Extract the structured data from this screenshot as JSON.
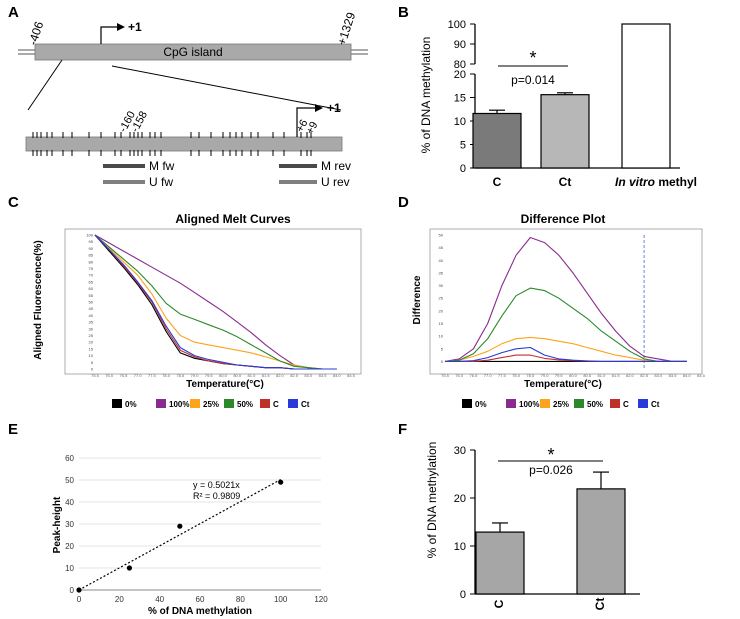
{
  "panels": {
    "a": "A",
    "b": "B",
    "c": "C",
    "d": "D",
    "e": "E",
    "f": "F"
  },
  "panelA": {
    "start": "-406",
    "end": "+1329",
    "tss": "+1",
    "island_label": "CpG island",
    "pos_160": "-160",
    "pos_158": "-158",
    "pos_p6": "+6",
    "pos_p9": "+9",
    "tss2": "+1",
    "primers": [
      "M fw",
      "U fw",
      "M rev",
      "U rev"
    ]
  },
  "chart_data": [
    {
      "panel": "B",
      "type": "bar",
      "ylabel": "% of DNA methylation",
      "categories": [
        "C",
        "Ct",
        "In vitro methyl"
      ],
      "values": [
        11.6,
        15.6,
        100
      ],
      "errors": [
        0.7,
        0.4,
        0
      ],
      "colors": [
        "#7a7a7a",
        "#b7b7b7",
        "#ffffff"
      ],
      "ylim_lower": [
        0,
        20
      ],
      "ylim_upper": [
        80,
        100
      ],
      "yticks": [
        "0",
        "5",
        "10",
        "15",
        "20",
        "80",
        "90",
        "100"
      ],
      "significance": "*",
      "pvalue": "p=0.014",
      "italic_part": "In vitro",
      "plain_part": " methyl"
    },
    {
      "panel": "C",
      "type": "line",
      "title": "Aligned Melt Curves",
      "xlabel": "Temperature(°C)",
      "ylabel": "Aligned Fluorescence(%)",
      "ylim": [
        0,
        100
      ],
      "yticks": [
        "0",
        "5",
        "10",
        "15",
        "20",
        "25",
        "30",
        "35",
        "40",
        "45",
        "50",
        "55",
        "60",
        "65",
        "70",
        "75",
        "80",
        "85",
        "90",
        "95",
        "100"
      ],
      "xticks": [
        "75.5",
        "76.0",
        "76.5",
        "77.0",
        "77.5",
        "78.0",
        "78.5",
        "79.0",
        "79.5",
        "80.0",
        "80.5",
        "81.0",
        "81.5",
        "82.0",
        "82.5",
        "83.0",
        "83.5",
        "84.0",
        "84.5"
      ],
      "x": [
        75.5,
        76.0,
        76.5,
        77.0,
        77.5,
        78.0,
        78.5,
        79.0,
        79.5,
        80.0,
        80.5,
        81.0,
        81.5,
        82.0,
        82.5,
        83.0,
        83.5,
        84.0
      ],
      "series": [
        {
          "name": "0%",
          "color": "#000000",
          "values": [
            100,
            88,
            76,
            63,
            48,
            28,
            12,
            8,
            6,
            4,
            3,
            2,
            1,
            1,
            0,
            0,
            0,
            0
          ]
        },
        {
          "name": "100%",
          "color": "#8a2a8f",
          "values": [
            100,
            94,
            88,
            82,
            76,
            70,
            64,
            57,
            50,
            43,
            35,
            27,
            18,
            10,
            3,
            1,
            0,
            0
          ]
        },
        {
          "name": "25%",
          "color": "#ffa21c",
          "values": [
            100,
            90,
            80,
            70,
            56,
            38,
            25,
            20,
            18,
            16,
            14,
            12,
            9,
            6,
            3,
            1,
            0,
            0
          ]
        },
        {
          "name": "50%",
          "color": "#2a8a2a",
          "values": [
            100,
            91,
            82,
            73,
            62,
            49,
            41,
            37,
            33,
            29,
            24,
            18,
            12,
            6,
            2,
            1,
            0,
            0
          ]
        },
        {
          "name": "C",
          "color": "#c0302a",
          "values": [
            100,
            89,
            77,
            64,
            50,
            30,
            14,
            9,
            6,
            4,
            3,
            2,
            1,
            1,
            0,
            0,
            0,
            0
          ]
        },
        {
          "name": "Ct",
          "color": "#2a3ad8",
          "values": [
            100,
            89,
            78,
            65,
            51,
            32,
            16,
            10,
            7,
            5,
            3,
            2,
            1,
            1,
            0,
            0,
            0,
            0
          ]
        }
      ],
      "legend": [
        "0%",
        "100%",
        "25%",
        "50%",
        "C",
        "Ct"
      ]
    },
    {
      "panel": "D",
      "type": "line",
      "title": "Difference Plot",
      "xlabel": "Temperature(°C)",
      "ylabel": "Difference",
      "ylim": [
        -3,
        50
      ],
      "yticks": [
        "0",
        "5",
        "10",
        "15",
        "20",
        "25",
        "30",
        "35",
        "40",
        "45",
        "50"
      ],
      "xticks": [
        "75.5",
        "76.0",
        "76.5",
        "77.0",
        "77.5",
        "78.0",
        "78.5",
        "79.0",
        "79.5",
        "80.0",
        "80.5",
        "81.0",
        "81.5",
        "82.0",
        "82.5",
        "83.0",
        "83.5",
        "84.0",
        "84.5"
      ],
      "x": [
        75.5,
        76.0,
        76.5,
        77.0,
        77.5,
        78.0,
        78.5,
        79.0,
        79.5,
        80.0,
        80.5,
        81.0,
        81.5,
        82.0,
        82.5,
        83.0,
        83.5,
        84.0
      ],
      "marker_x": 82.5,
      "series": [
        {
          "name": "0%",
          "color": "#000000",
          "values": [
            0,
            0,
            0,
            0,
            0,
            0,
            0,
            0,
            0,
            0,
            0,
            0,
            0,
            0,
            0,
            0,
            0,
            0
          ]
        },
        {
          "name": "100%",
          "color": "#8a2a8f",
          "values": [
            0,
            1,
            5,
            15,
            30,
            42,
            49,
            47,
            42,
            35,
            27,
            19,
            12,
            6,
            2,
            1,
            0,
            0
          ]
        },
        {
          "name": "25%",
          "color": "#ffa21c",
          "values": [
            0,
            0.5,
            2,
            4,
            7,
            9,
            9.5,
            9,
            8,
            7,
            5.5,
            4,
            2.5,
            1.5,
            0.5,
            0,
            0,
            0
          ]
        },
        {
          "name": "50%",
          "color": "#2a8a2a",
          "values": [
            0,
            0.5,
            3,
            9,
            18,
            26,
            29,
            28,
            25,
            21,
            17,
            12,
            8,
            4,
            1,
            0,
            0,
            0
          ]
        },
        {
          "name": "C",
          "color": "#c0302a",
          "values": [
            0,
            0,
            0,
            0.5,
            1.5,
            2.5,
            2.5,
            1.2,
            0.6,
            0.3,
            0.1,
            0,
            0,
            0,
            0,
            0,
            0,
            0
          ]
        },
        {
          "name": "Ct",
          "color": "#2a3ad8",
          "values": [
            0,
            0,
            0.3,
            1.5,
            3.5,
            5,
            5.5,
            2.5,
            1,
            0.5,
            0.2,
            0,
            0,
            0,
            0,
            0,
            0,
            0
          ]
        }
      ],
      "legend": [
        "0%",
        "100%",
        "25%",
        "50%",
        "C",
        "Ct"
      ]
    },
    {
      "panel": "E",
      "type": "scatter",
      "xlabel": "% of DNA methylation",
      "ylabel": "Peak-height",
      "xlim": [
        0,
        120
      ],
      "ylim": [
        0,
        60
      ],
      "xticks": [
        "0",
        "20",
        "40",
        "60",
        "80",
        "100",
        "120"
      ],
      "yticks": [
        "0",
        "10",
        "20",
        "30",
        "40",
        "50",
        "60"
      ],
      "x": [
        0,
        25,
        50,
        100
      ],
      "y": [
        0,
        10,
        29,
        49
      ],
      "trend_slope": 0.5021,
      "equation": "y = 0.5021x",
      "r2": "R² = 0.9809"
    },
    {
      "panel": "F",
      "type": "bar",
      "ylabel": "% of DNA methylation",
      "categories": [
        "C",
        "Ct"
      ],
      "values": [
        12.9,
        21.9
      ],
      "errors": [
        1.9,
        3.5
      ],
      "ylim": [
        0,
        30
      ],
      "yticks": [
        "0",
        "10",
        "20",
        "30"
      ],
      "color": "#a6a6a6",
      "significance": "*",
      "pvalue": "p=0.026"
    }
  ]
}
